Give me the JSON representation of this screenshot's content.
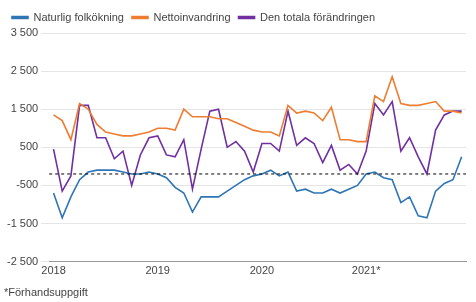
{
  "chart_data": {
    "type": "line",
    "footnote": "*Förhandsuppgift",
    "categories": [
      "2018",
      null,
      null,
      null,
      null,
      null,
      null,
      null,
      null,
      null,
      null,
      null,
      "2019",
      null,
      null,
      null,
      null,
      null,
      null,
      null,
      null,
      null,
      null,
      null,
      "2020",
      null,
      null,
      null,
      null,
      null,
      null,
      null,
      null,
      null,
      null,
      null,
      "2021*",
      null,
      null,
      null,
      null,
      null,
      null,
      null,
      null,
      null,
      null,
      null
    ],
    "series": [
      {
        "name": "Naturlig folkökning",
        "color": "#2e75b6",
        "values": [
          -700,
          -1350,
          -800,
          -350,
          -150,
          -100,
          -100,
          -100,
          -150,
          -200,
          -200,
          -150,
          -200,
          -300,
          -550,
          -700,
          -1200,
          -800,
          -800,
          -800,
          -650,
          -500,
          -350,
          -250,
          -200,
          -100,
          -250,
          -150,
          -650,
          -600,
          -700,
          -700,
          -600,
          -700,
          -600,
          -500,
          -200,
          -150,
          -300,
          -350,
          -950,
          -800,
          -1300,
          -1350,
          -650,
          -450,
          -350,
          250
        ]
      },
      {
        "name": "Nettoinvandring",
        "color": "#ed7d31",
        "values": [
          1350,
          1200,
          700,
          1650,
          1500,
          1100,
          900,
          850,
          800,
          800,
          850,
          900,
          1000,
          1000,
          950,
          1500,
          1300,
          1300,
          1300,
          1250,
          1250,
          1150,
          1050,
          950,
          900,
          900,
          800,
          1600,
          1400,
          1450,
          1400,
          1200,
          1550,
          700,
          700,
          650,
          650,
          1850,
          1700,
          2350,
          1650,
          1600,
          1600,
          1650,
          1700,
          1450,
          1450,
          1400
        ]
      },
      {
        "name": "Den totala förändringen",
        "color": "#7030a0",
        "values": [
          450,
          -650,
          -250,
          1600,
          1600,
          750,
          750,
          200,
          400,
          -500,
          300,
          750,
          800,
          300,
          250,
          700,
          -600,
          450,
          1450,
          1500,
          500,
          650,
          400,
          -150,
          600,
          600,
          400,
          1450,
          550,
          750,
          600,
          100,
          550,
          -100,
          50,
          -200,
          400,
          1650,
          1350,
          1700,
          400,
          750,
          250,
          -200,
          950,
          1350,
          1450,
          1450
        ]
      }
    ],
    "hline": -200,
    "ylim": [
      -2500,
      3500
    ],
    "yticks": [
      {
        "value": -2500,
        "label": "-2 500"
      },
      {
        "value": -1500,
        "label": "-1 500"
      },
      -500,
      500,
      {
        "value": 1500,
        "label": "1 500"
      },
      {
        "value": 2500,
        "label": "2 500"
      },
      {
        "value": 3500,
        "label": "3 500"
      }
    ],
    "grid": "y",
    "legend": "upper left"
  }
}
